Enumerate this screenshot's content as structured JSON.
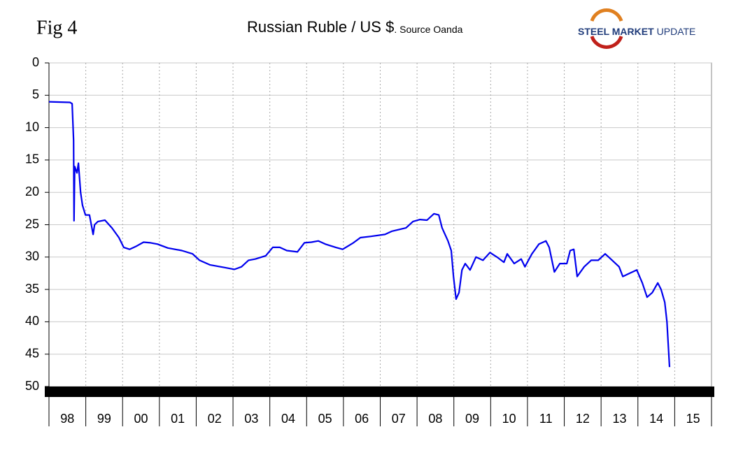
{
  "fig_label": "Fig 4",
  "logo": {
    "brand": "STEEL MARKET",
    "tagline": "UPDATE"
  },
  "chart_data": {
    "type": "line",
    "title": "Russian Ruble / US $",
    "subtitle": ". Source Oanda",
    "y_inverted": true,
    "grid": true,
    "ylim": [
      0,
      50
    ],
    "yticks": [
      0,
      5,
      10,
      15,
      20,
      25,
      30,
      35,
      40,
      45,
      50
    ],
    "xlim": [
      0,
      18
    ],
    "xticks": [
      {
        "value": 0.5,
        "label": "98"
      },
      {
        "value": 1.5,
        "label": "99"
      },
      {
        "value": 2.5,
        "label": "00"
      },
      {
        "value": 3.5,
        "label": "01"
      },
      {
        "value": 4.5,
        "label": "02"
      },
      {
        "value": 5.5,
        "label": "03"
      },
      {
        "value": 6.5,
        "label": "04"
      },
      {
        "value": 7.5,
        "label": "05"
      },
      {
        "value": 8.5,
        "label": "06"
      },
      {
        "value": 9.5,
        "label": "07"
      },
      {
        "value": 10.5,
        "label": "08"
      },
      {
        "value": 11.5,
        "label": "09"
      },
      {
        "value": 12.5,
        "label": "10"
      },
      {
        "value": 13.5,
        "label": "11"
      },
      {
        "value": 14.5,
        "label": "12"
      },
      {
        "value": 15.5,
        "label": "13"
      },
      {
        "value": 16.5,
        "label": "14"
      },
      {
        "value": 17.5,
        "label": "15"
      }
    ],
    "x": [
      0,
      0.57,
      0.63,
      0.67,
      0.68,
      0.7,
      0.76,
      0.8,
      0.86,
      0.91,
      0.99,
      1.1,
      1.2,
      1.24,
      1.33,
      1.52,
      1.71,
      1.9,
      2.03,
      2.19,
      2.38,
      2.57,
      2.76,
      2.95,
      3.23,
      3.61,
      3.9,
      4.09,
      4.37,
      4.75,
      5.04,
      5.23,
      5.42,
      5.61,
      5.89,
      6.08,
      6.27,
      6.46,
      6.75,
      6.94,
      7.13,
      7.32,
      7.51,
      7.79,
      7.98,
      8.27,
      8.46,
      8.75,
      9.13,
      9.32,
      9.7,
      9.89,
      10.08,
      10.27,
      10.46,
      10.59,
      10.68,
      10.84,
      10.93,
      10.99,
      11.06,
      11.14,
      11.22,
      11.31,
      11.44,
      11.6,
      11.79,
      11.98,
      12.17,
      12.36,
      12.45,
      12.64,
      12.83,
      12.93,
      13.12,
      13.31,
      13.5,
      13.59,
      13.73,
      13.88,
      14.07,
      14.16,
      14.26,
      14.35,
      14.54,
      14.73,
      14.92,
      15.11,
      15.3,
      15.49,
      15.59,
      15.78,
      15.97,
      16.12,
      16.25,
      16.39,
      16.54,
      16.63,
      16.73,
      16.79,
      16.83,
      16.86
    ],
    "series": [
      {
        "color": "#0000ee",
        "values": [
          6.0,
          6.1,
          6.3,
          12,
          24.4,
          16,
          17,
          15.5,
          20,
          22,
          23.5,
          23.5,
          26.5,
          25,
          24.5,
          24.3,
          25.5,
          27,
          28.5,
          28.8,
          28.3,
          27.7,
          27.8,
          28,
          28.6,
          29,
          29.5,
          30.5,
          31.2,
          31.6,
          31.9,
          31.5,
          30.5,
          30.3,
          29.8,
          28.5,
          28.5,
          29,
          29.2,
          27.8,
          27.7,
          27.5,
          28,
          28.5,
          28.8,
          27.8,
          27,
          26.8,
          26.5,
          26,
          25.5,
          24.5,
          24.2,
          24.3,
          23.3,
          23.5,
          25.5,
          27.5,
          29,
          33,
          36.5,
          35.5,
          32,
          31,
          32,
          30,
          30.5,
          29.3,
          30,
          30.8,
          29.5,
          31,
          30.3,
          31.5,
          29.5,
          28,
          27.5,
          28.5,
          32.3,
          31,
          31,
          29,
          28.8,
          33,
          31.5,
          30.5,
          30.5,
          29.5,
          30.5,
          31.5,
          33,
          32.5,
          32,
          34,
          36.2,
          35.5,
          34,
          35,
          37,
          40,
          44,
          47
        ]
      }
    ]
  }
}
